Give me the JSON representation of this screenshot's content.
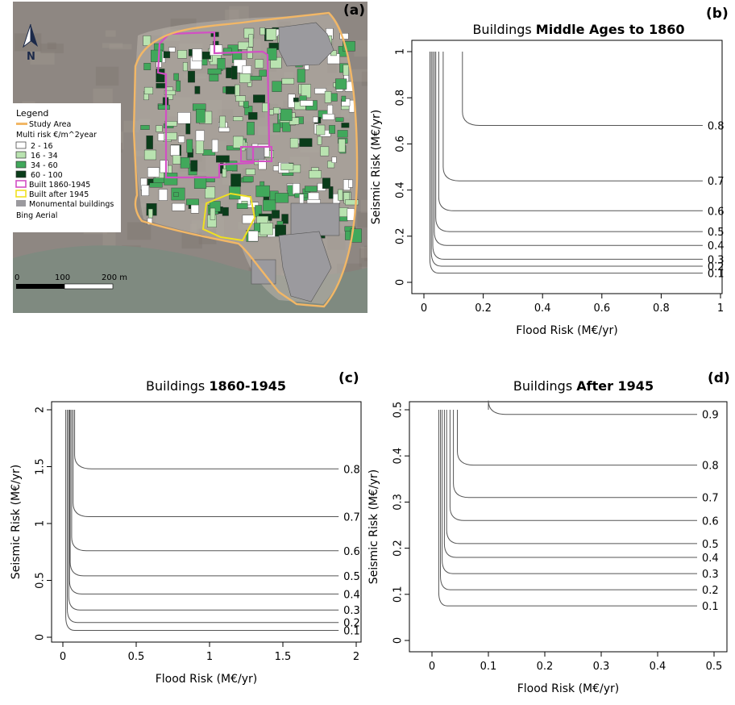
{
  "colors": {
    "study_area": "#f2b766",
    "built_1860_1945": "#d24fc4",
    "built_after_1945": "#f0e020",
    "monumental": "#9b9a9e",
    "risk_2_16": "#ffffff",
    "risk_16_34": "#b9e3b0",
    "risk_34_60": "#41a85b",
    "risk_60_100": "#0a3d1a",
    "contour": "#555555"
  },
  "map": {
    "panel_label": "(a)",
    "north_label": "N",
    "legend": {
      "title": "Legend",
      "study_area": "Study Area",
      "multi_risk_title": "Multi risk €/m^2year",
      "classes": [
        "2 - 16",
        "16 - 34",
        "34 - 60",
        "60 - 100"
      ],
      "built_1860": "Built 1860-1945",
      "built_1945": "Built after 1945",
      "monumental": "Monumental buildings",
      "basemap": "Bing Aerial"
    },
    "scale_labels": [
      "0",
      "100",
      "200 m"
    ]
  },
  "chart_data": [
    {
      "type": "contour",
      "panel_label": "(b)",
      "title_prefix": "Buildings ",
      "title_bold": "Middle Ages to 1860",
      "xlabel": "Flood Risk (M€/yr)",
      "ylabel": "Seismic Risk (M€/yr)",
      "xlim": [
        0,
        1
      ],
      "ylim": [
        0,
        1
      ],
      "xticks": [
        "0",
        "0.2",
        "0.4",
        "0.6",
        "0.8",
        "1"
      ],
      "yticks": [
        "0",
        "0.2",
        "0.4",
        "0.6",
        "0.8",
        "1"
      ],
      "levels": [
        {
          "label": "0.1",
          "x_min": 0.02,
          "y_asym": 0.04
        },
        {
          "label": "0.2",
          "x_min": 0.025,
          "y_asym": 0.07
        },
        {
          "label": "0.3",
          "x_min": 0.03,
          "y_asym": 0.1
        },
        {
          "label": "0.4",
          "x_min": 0.035,
          "y_asym": 0.16
        },
        {
          "label": "0.5",
          "x_min": 0.04,
          "y_asym": 0.22
        },
        {
          "label": "0.6",
          "x_min": 0.05,
          "y_asym": 0.31
        },
        {
          "label": "0.7",
          "x_min": 0.065,
          "y_asym": 0.44
        },
        {
          "label": "0.8",
          "x_min": 0.13,
          "y_asym": 0.68
        }
      ]
    },
    {
      "type": "contour",
      "panel_label": "(c)",
      "title_prefix": "Buildings ",
      "title_bold": "1860-1945",
      "xlabel": "Flood Risk (M€/yr)",
      "ylabel": "Seismic Risk (M€/yr)",
      "xlim": [
        0,
        2
      ],
      "ylim": [
        0,
        2
      ],
      "xticks": [
        "0",
        "0.5",
        "1",
        "1.5",
        "2"
      ],
      "yticks": [
        "0",
        "0.5",
        "1",
        "1.5",
        "2"
      ],
      "levels": [
        {
          "label": "0.1",
          "x_min": 0.02,
          "y_asym": 0.06
        },
        {
          "label": "0.2",
          "x_min": 0.03,
          "y_asym": 0.13
        },
        {
          "label": "0.3",
          "x_min": 0.04,
          "y_asym": 0.24
        },
        {
          "label": "0.4",
          "x_min": 0.045,
          "y_asym": 0.38
        },
        {
          "label": "0.5",
          "x_min": 0.05,
          "y_asym": 0.54
        },
        {
          "label": "0.6",
          "x_min": 0.06,
          "y_asym": 0.76
        },
        {
          "label": "0.7",
          "x_min": 0.07,
          "y_asym": 1.06
        },
        {
          "label": "0.8",
          "x_min": 0.08,
          "y_asym": 1.48
        }
      ]
    },
    {
      "type": "contour",
      "panel_label": "(d)",
      "title_prefix": "Buildings ",
      "title_bold": "After 1945",
      "xlabel": "Flood Risk (M€/yr)",
      "ylabel": "Seismic Risk (M€/yr)",
      "xlim": [
        0,
        0.5
      ],
      "ylim": [
        0,
        0.5
      ],
      "xticks": [
        "0",
        "0.1",
        "0.2",
        "0.3",
        "0.4",
        "0.5"
      ],
      "yticks": [
        "0",
        "0.1",
        "0.2",
        "0.3",
        "0.4",
        "0.5"
      ],
      "levels": [
        {
          "label": "0.1",
          "x_min": 0.012,
          "y_asym": 0.075
        },
        {
          "label": "0.2",
          "x_min": 0.015,
          "y_asym": 0.11
        },
        {
          "label": "0.3",
          "x_min": 0.018,
          "y_asym": 0.145
        },
        {
          "label": "0.4",
          "x_min": 0.022,
          "y_asym": 0.18
        },
        {
          "label": "0.5",
          "x_min": 0.026,
          "y_asym": 0.21
        },
        {
          "label": "0.6",
          "x_min": 0.032,
          "y_asym": 0.26
        },
        {
          "label": "0.7",
          "x_min": 0.038,
          "y_asym": 0.31
        },
        {
          "label": "0.8",
          "x_min": 0.045,
          "y_asym": 0.38
        },
        {
          "label": "0.9",
          "x_min": 0.1,
          "y_asym": 0.49
        }
      ]
    }
  ]
}
